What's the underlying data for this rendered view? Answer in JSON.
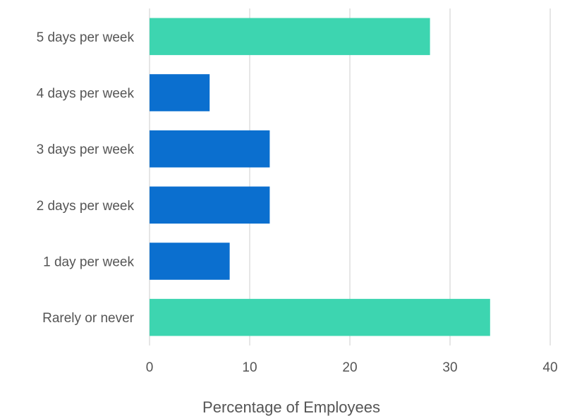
{
  "chart_data": {
    "type": "bar",
    "orientation": "horizontal",
    "categories": [
      "5 days per week",
      "4 days per week",
      "3 days per week",
      "2 days per week",
      "1 day per week",
      "Rarely or never"
    ],
    "values": [
      28,
      6,
      12,
      12,
      8,
      34
    ],
    "bar_colors": [
      "#3dd5b0",
      "#0b6fcf",
      "#0b6fcf",
      "#0b6fcf",
      "#0b6fcf",
      "#3dd5b0"
    ],
    "xlabel": "Percentage of Employees",
    "ylabel": "",
    "title": "",
    "xlim": [
      0,
      40
    ],
    "xticks": [
      0,
      10,
      20,
      30,
      40
    ],
    "grid": true,
    "legend": "none"
  }
}
